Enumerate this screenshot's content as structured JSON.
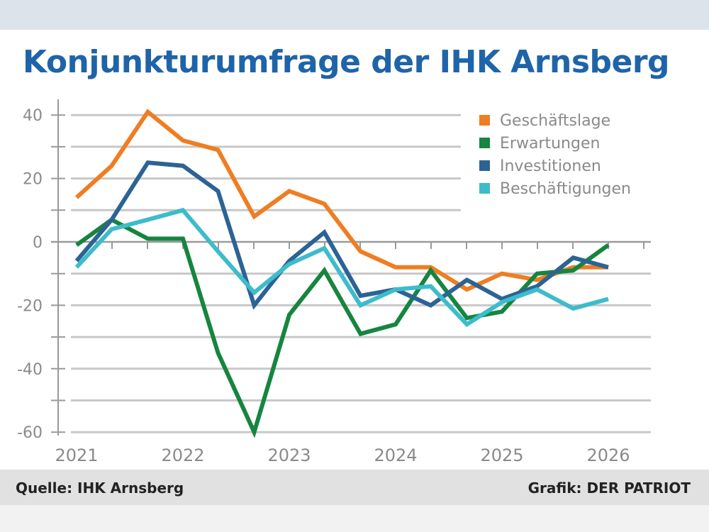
{
  "chart_data": {
    "type": "line",
    "title": "Konjunkturumfrage der IHK Arnsberg",
    "xlabel": "",
    "ylabel": "",
    "ylim": [
      -60,
      42
    ],
    "xlim": [
      2021,
      2026.2
    ],
    "yticks": [
      40,
      20,
      0,
      -20,
      -40,
      -60
    ],
    "xticks": [
      2021,
      2022,
      2023,
      2024,
      2025,
      2026
    ],
    "grid": true,
    "legend_position": "top-right",
    "x": [
      2021.0,
      2021.33,
      2021.67,
      2022.0,
      2022.33,
      2022.67,
      2023.0,
      2023.33,
      2023.67,
      2024.0,
      2024.33,
      2024.67,
      2025.0,
      2025.33,
      2025.67,
      2026.0
    ],
    "series": [
      {
        "name": "Geschäftslage",
        "color": "#ef7d22",
        "values": [
          14,
          24,
          41,
          32,
          29,
          8,
          16,
          12,
          -3,
          -8,
          -8,
          -15,
          -10,
          -12,
          -8,
          -8
        ]
      },
      {
        "name": "Erwartungen",
        "color": "#16853f",
        "values": [
          -1,
          7,
          1,
          1,
          -35,
          -60,
          -23,
          -9,
          -29,
          -26,
          -9,
          -24,
          -22,
          -10,
          -9,
          -1
        ]
      },
      {
        "name": "Investitionen",
        "color": "#2c6394",
        "values": [
          -6,
          7,
          25,
          24,
          16,
          -20,
          -6,
          3,
          -17,
          -15,
          -20,
          -12,
          -18,
          -14,
          -5,
          -8
        ]
      },
      {
        "name": "Beschäftigungen",
        "color": "#3dbccb",
        "values": [
          -8,
          4,
          7,
          10,
          -3,
          -16,
          -7,
          -2,
          -20,
          -15,
          -14,
          -26,
          -19,
          -15,
          -21,
          -18
        ]
      }
    ]
  },
  "footer": {
    "source": "Quelle: IHK Arnsberg",
    "credit": "Grafik: DER PATRIOT"
  }
}
